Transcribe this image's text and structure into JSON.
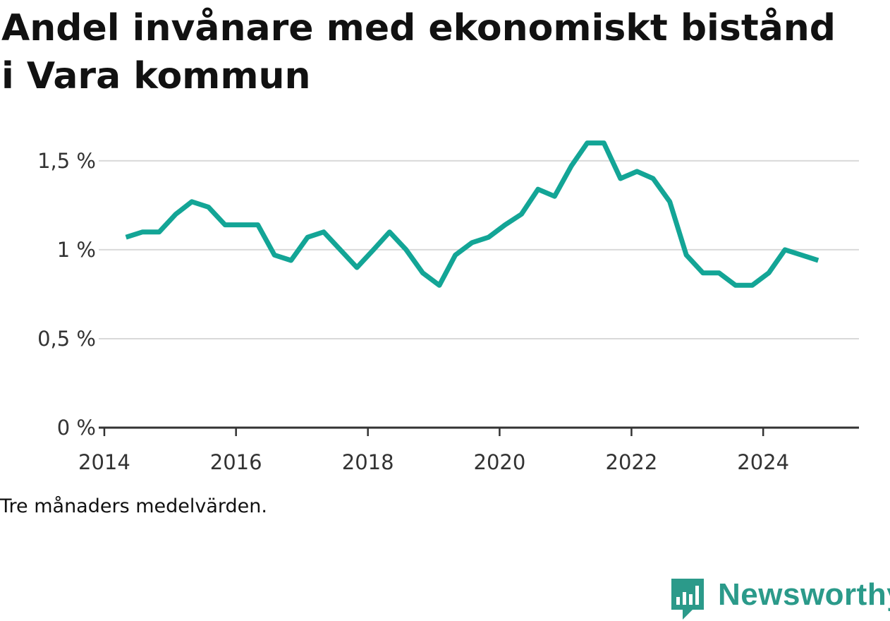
{
  "title": "Andel invånare med ekonomiskt bistånd i Vara kommun",
  "note": "Tre månaders medelvärden.",
  "brand": {
    "name": "Newsworthy",
    "color": "#2b9a8a",
    "icon": "bar-chart-speech-bubble-icon"
  },
  "colors": {
    "line": "#13a596",
    "grid": "#d9d9d9",
    "axis": "#333333"
  },
  "chart_data": {
    "type": "line",
    "title": "Andel invånare med ekonomiskt bistånd i Vara kommun",
    "xlabel": "",
    "ylabel": "",
    "grid": true,
    "legend": "none",
    "xlim": [
      "2013-12-01",
      "2025-06-15"
    ],
    "ylim": [
      0,
      1.65
    ],
    "x_ticks": [
      "2014",
      "2016",
      "2018",
      "2020",
      "2022",
      "2024"
    ],
    "y_ticks": [
      {
        "value": 0,
        "label": "0 %"
      },
      {
        "value": 0.5,
        "label": "0,5 %"
      },
      {
        "value": 1,
        "label": "1 %"
      },
      {
        "value": 1.5,
        "label": "1,5 %"
      }
    ],
    "series": [
      {
        "name": "",
        "points": [
          [
            "2014-05-01",
            1.07
          ],
          [
            "2014-08-01",
            1.1
          ],
          [
            "2014-11-01",
            1.1
          ],
          [
            "2015-02-01",
            1.2
          ],
          [
            "2015-05-01",
            1.27
          ],
          [
            "2015-08-01",
            1.24
          ],
          [
            "2015-11-01",
            1.14
          ],
          [
            "2016-02-01",
            1.14
          ],
          [
            "2016-05-01",
            1.14
          ],
          [
            "2016-08-01",
            0.97
          ],
          [
            "2016-11-01",
            0.94
          ],
          [
            "2017-02-01",
            1.07
          ],
          [
            "2017-05-01",
            1.1
          ],
          [
            "2017-08-01",
            1.0
          ],
          [
            "2017-11-01",
            0.9
          ],
          [
            "2018-02-01",
            1.0
          ],
          [
            "2018-05-01",
            1.1
          ],
          [
            "2018-08-01",
            1.0
          ],
          [
            "2018-11-01",
            0.87
          ],
          [
            "2019-02-01",
            0.8
          ],
          [
            "2019-05-01",
            0.97
          ],
          [
            "2019-08-01",
            1.04
          ],
          [
            "2019-11-01",
            1.07
          ],
          [
            "2020-02-01",
            1.14
          ],
          [
            "2020-05-01",
            1.2
          ],
          [
            "2020-08-01",
            1.34
          ],
          [
            "2020-11-01",
            1.3
          ],
          [
            "2021-02-01",
            1.47
          ],
          [
            "2021-05-01",
            1.6
          ],
          [
            "2021-08-01",
            1.6
          ],
          [
            "2021-11-01",
            1.4
          ],
          [
            "2022-02-01",
            1.44
          ],
          [
            "2022-05-01",
            1.4
          ],
          [
            "2022-08-01",
            1.27
          ],
          [
            "2022-11-01",
            0.97
          ],
          [
            "2023-02-01",
            0.87
          ],
          [
            "2023-05-01",
            0.87
          ],
          [
            "2023-08-01",
            0.8
          ],
          [
            "2023-11-01",
            0.8
          ],
          [
            "2024-02-01",
            0.87
          ],
          [
            "2024-05-01",
            1.0
          ],
          [
            "2024-08-01",
            0.97
          ],
          [
            "2024-11-01",
            0.94
          ]
        ]
      }
    ]
  }
}
